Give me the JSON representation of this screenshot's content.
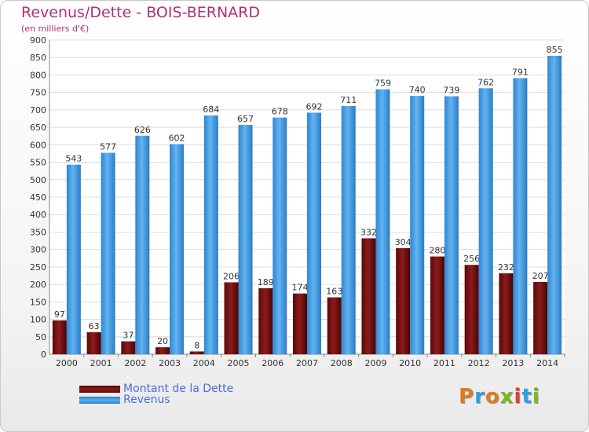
{
  "chart_data": {
    "type": "bar",
    "title": "Revenus/Dette - BOIS-BERNARD",
    "subtitle": "(en milliers d'€)",
    "categories": [
      "2000",
      "2001",
      "2002",
      "2003",
      "2004",
      "2005",
      "2006",
      "2007",
      "2008",
      "2009",
      "2010",
      "2011",
      "2012",
      "2013",
      "2014"
    ],
    "series": [
      {
        "name": "Montant de la Dette",
        "color": "#7a1010",
        "values": [
          97,
          63,
          37,
          20,
          8,
          206,
          189,
          174,
          163,
          332,
          304,
          280,
          256,
          232,
          207
        ]
      },
      {
        "name": "Revenus",
        "color": "#3a98e0",
        "values": [
          543,
          577,
          626,
          602,
          684,
          657,
          678,
          692,
          711,
          759,
          740,
          739,
          762,
          791,
          855
        ]
      }
    ],
    "ylim": [
      0,
      900
    ],
    "ytick_step": 50,
    "grid": true,
    "legend_position": "bottom-left"
  },
  "logo": {
    "text": "Proxiti",
    "colors": [
      "#e07a1a",
      "#2f9fe0",
      "#e07a1a",
      "#7ab820",
      "#e03a3a",
      "#2f9fe0",
      "#7ab820"
    ]
  }
}
